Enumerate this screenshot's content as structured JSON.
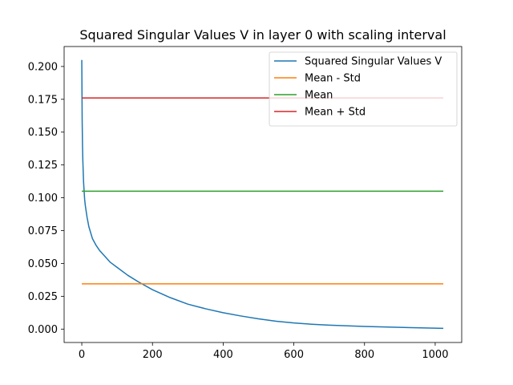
{
  "chart_data": {
    "type": "line",
    "title": "Squared Singular Values V in layer 0 with scaling interval",
    "xlabel": "",
    "ylabel": "",
    "xlim": [
      -50,
      1075
    ],
    "ylim": [
      -0.0102,
      0.2152
    ],
    "xticks": [
      0,
      200,
      400,
      600,
      800,
      1000
    ],
    "yticks": [
      0.0,
      0.025,
      0.05,
      0.075,
      0.1,
      0.125,
      0.15,
      0.175,
      0.2
    ],
    "xtick_labels": [
      "0",
      "200",
      "400",
      "600",
      "800",
      "1000"
    ],
    "ytick_labels": [
      "0.000",
      "0.025",
      "0.050",
      "0.075",
      "0.100",
      "0.125",
      "0.150",
      "0.175",
      "0.200"
    ],
    "grid": false,
    "legend_position": "top-right",
    "series": [
      {
        "name": "Squared Singular Values V",
        "color": "#1f77b4",
        "kind": "curve",
        "x": [
          0,
          1,
          2,
          3,
          5,
          8,
          10,
          15,
          20,
          30,
          40,
          50,
          60,
          80,
          100,
          130,
          160,
          200,
          250,
          300,
          350,
          400,
          450,
          500,
          550,
          600,
          650,
          700,
          800,
          900,
          1023
        ],
        "y": [
          0.205,
          0.16,
          0.14,
          0.128,
          0.112,
          0.099,
          0.094,
          0.085,
          0.078,
          0.069,
          0.064,
          0.06,
          0.057,
          0.051,
          0.047,
          0.041,
          0.036,
          0.03,
          0.024,
          0.019,
          0.0155,
          0.0125,
          0.01,
          0.0078,
          0.006,
          0.0047,
          0.0037,
          0.003,
          0.002,
          0.0013,
          0.0006
        ]
      },
      {
        "name": "Mean - Std",
        "color": "#ff7f0e",
        "kind": "hline",
        "x": [
          0,
          1023
        ],
        "y": [
          0.0345,
          0.0345
        ]
      },
      {
        "name": "Mean",
        "color": "#2ca02c",
        "kind": "hline",
        "x": [
          0,
          1023
        ],
        "y": [
          0.105,
          0.105
        ]
      },
      {
        "name": "Mean + Std",
        "color": "#d62728",
        "kind": "hline",
        "x": [
          0,
          1023
        ],
        "y": [
          0.176,
          0.176
        ]
      }
    ]
  }
}
